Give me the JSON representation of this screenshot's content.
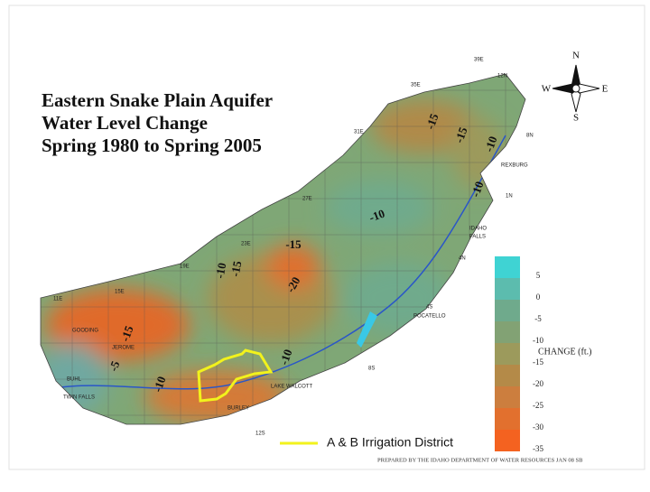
{
  "title": [
    "Eastern Snake Plain Aquifer",
    "Water Level Change",
    "Spring 1980 to Spring 2005"
  ],
  "compass": {
    "north": "N",
    "west": "W",
    "east": "E",
    "south": "S"
  },
  "legend": {
    "title": "CHANGE (ft.)",
    "ticks": [
      5,
      0,
      -5,
      -10,
      -15,
      -20,
      -25,
      -30,
      -35
    ],
    "colors": [
      "#3fd3d3",
      "#5cbcae",
      "#6faa8c",
      "#82a274",
      "#9c9a5c",
      "#b48a48",
      "#cc7e3e",
      "#e2702e",
      "#f46220"
    ]
  },
  "district_label": "A & B Irrigation District",
  "district_color": "#f2f21c",
  "credit": "PREPARED BY THE IDAHO DEPARTMENT OF WATER RESOURCES JAN 08 SB",
  "places": [
    "REXBURG",
    "IDAHO",
    "FALLS",
    "POCATELLO",
    "JEROME",
    "GOODING",
    "BUHL",
    "TWIN FALLS",
    "BURLEY",
    "LAKE WALCOTT"
  ],
  "grid_labels": [
    "39E",
    "12N",
    "35E",
    "31E",
    "8N",
    "27E",
    "23E",
    "19E",
    "15E",
    "11E",
    "4N",
    "4S",
    "8S",
    "12S",
    "1N"
  ],
  "contour_labels": [
    "-15",
    "-15",
    "-10",
    "-10",
    "-10",
    "-15",
    "-10",
    "-15",
    "-20",
    "-10",
    "-5",
    "-15",
    "-10"
  ]
}
